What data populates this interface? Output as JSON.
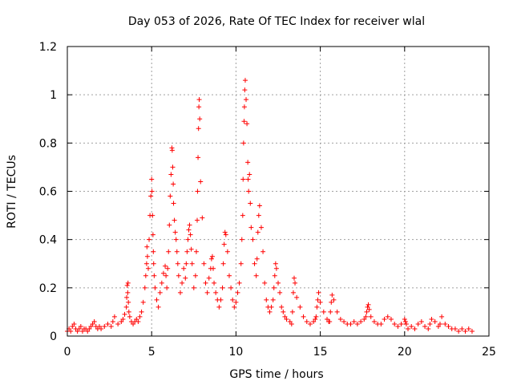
{
  "chart_data": {
    "type": "scatter",
    "title": "Day 053 of 2026, Rate Of TEC Index for receiver wlal",
    "xlabel": "GPS time / hours",
    "ylabel": "ROTI / TECUs",
    "xlim": [
      0,
      25
    ],
    "ylim": [
      0,
      1.2
    ],
    "xticks": [
      0,
      5,
      10,
      15,
      20,
      25
    ],
    "xtick_labels": [
      "0",
      "5",
      "10",
      "15",
      "20",
      "25"
    ],
    "yticks": [
      0,
      0.2,
      0.4,
      0.6,
      0.8,
      1,
      1.2
    ],
    "ytick_labels": [
      "0",
      "0.2",
      "0.4",
      "0.6",
      "0.8",
      "1",
      "1.2"
    ],
    "grid": true,
    "marker": "plus",
    "color": "#ff0000",
    "series": [
      {
        "x": [
          0.0,
          0.1,
          0.2,
          0.3,
          0.4,
          0.5,
          0.6,
          0.7,
          0.8,
          0.9,
          1.0,
          1.1,
          1.2,
          1.3,
          1.4,
          1.5,
          1.6,
          1.7,
          1.8,
          1.9,
          2.0,
          2.2,
          2.4,
          2.6,
          2.7,
          2.8,
          3.0,
          3.2,
          3.3,
          3.4,
          3.5,
          3.52,
          3.55,
          3.58,
          3.6,
          3.62,
          3.65,
          3.7,
          3.8,
          3.9,
          4.0,
          4.1,
          4.2,
          4.3,
          4.4,
          4.5,
          4.6,
          4.65,
          4.7,
          4.72,
          4.75,
          4.8,
          4.85,
          4.9,
          4.95,
          5.0,
          5.02,
          5.05,
          5.08,
          5.1,
          5.12,
          5.15,
          5.2,
          5.3,
          5.4,
          5.5,
          5.6,
          5.7,
          5.8,
          5.85,
          5.9,
          5.95,
          6.0,
          6.05,
          6.1,
          6.15,
          6.2,
          6.22,
          6.25,
          6.28,
          6.3,
          6.35,
          6.4,
          6.45,
          6.5,
          6.55,
          6.6,
          6.7,
          6.8,
          6.9,
          7.0,
          7.05,
          7.1,
          7.15,
          7.2,
          7.25,
          7.3,
          7.35,
          7.4,
          7.5,
          7.6,
          7.65,
          7.7,
          7.72,
          7.75,
          7.78,
          7.8,
          7.82,
          7.85,
          7.9,
          8.0,
          8.1,
          8.2,
          8.3,
          8.4,
          8.5,
          8.55,
          8.6,
          8.65,
          8.7,
          8.8,
          8.9,
          9.0,
          9.1,
          9.2,
          9.25,
          9.3,
          9.35,
          9.4,
          9.5,
          9.6,
          9.7,
          9.8,
          9.9,
          10.0,
          10.1,
          10.2,
          10.3,
          10.35,
          10.4,
          10.42,
          10.45,
          10.48,
          10.5,
          10.52,
          10.55,
          10.6,
          10.65,
          10.7,
          10.72,
          10.75,
          10.8,
          10.85,
          10.9,
          11.0,
          11.1,
          11.2,
          11.25,
          11.3,
          11.35,
          11.4,
          11.5,
          11.6,
          11.7,
          11.8,
          11.9,
          12.0,
          12.1,
          12.2,
          12.25,
          12.3,
          12.35,
          12.4,
          12.5,
          12.6,
          12.7,
          12.8,
          12.9,
          13.0,
          13.2,
          13.3,
          13.35,
          13.4,
          13.45,
          13.5,
          13.6,
          13.8,
          14.0,
          14.2,
          14.4,
          14.6,
          14.7,
          14.75,
          14.8,
          14.85,
          14.9,
          15.0,
          15.2,
          15.4,
          15.5,
          15.55,
          15.6,
          15.65,
          15.7,
          15.8,
          16.0,
          16.2,
          16.4,
          16.6,
          16.8,
          17.0,
          17.2,
          17.4,
          17.6,
          17.7,
          17.75,
          17.8,
          17.85,
          17.9,
          18.0,
          18.2,
          18.4,
          18.6,
          18.8,
          19.0,
          19.2,
          19.4,
          19.6,
          19.8,
          20.0,
          20.05,
          20.1,
          20.2,
          20.4,
          20.6,
          20.8,
          21.0,
          21.2,
          21.4,
          21.5,
          21.6,
          21.8,
          22.0,
          22.1,
          22.2,
          22.4,
          22.6,
          22.8,
          23.0,
          23.2,
          23.4,
          23.6,
          23.8,
          24.0
        ],
        "y": [
          0.02,
          0.03,
          0.02,
          0.04,
          0.05,
          0.03,
          0.02,
          0.03,
          0.04,
          0.02,
          0.03,
          0.03,
          0.02,
          0.03,
          0.04,
          0.05,
          0.06,
          0.04,
          0.03,
          0.04,
          0.03,
          0.04,
          0.05,
          0.04,
          0.06,
          0.08,
          0.05,
          0.06,
          0.07,
          0.09,
          0.12,
          0.16,
          0.21,
          0.18,
          0.22,
          0.14,
          0.1,
          0.08,
          0.06,
          0.05,
          0.06,
          0.07,
          0.06,
          0.08,
          0.1,
          0.14,
          0.2,
          0.25,
          0.3,
          0.37,
          0.33,
          0.28,
          0.4,
          0.5,
          0.58,
          0.65,
          0.6,
          0.5,
          0.42,
          0.35,
          0.3,
          0.25,
          0.2,
          0.15,
          0.12,
          0.18,
          0.22,
          0.26,
          0.29,
          0.25,
          0.2,
          0.28,
          0.35,
          0.46,
          0.58,
          0.67,
          0.78,
          0.77,
          0.7,
          0.63,
          0.55,
          0.48,
          0.43,
          0.4,
          0.35,
          0.3,
          0.25,
          0.18,
          0.22,
          0.28,
          0.24,
          0.3,
          0.35,
          0.4,
          0.44,
          0.46,
          0.42,
          0.36,
          0.3,
          0.2,
          0.25,
          0.35,
          0.48,
          0.6,
          0.74,
          0.86,
          0.95,
          0.98,
          0.9,
          0.64,
          0.49,
          0.3,
          0.22,
          0.18,
          0.24,
          0.28,
          0.32,
          0.33,
          0.28,
          0.22,
          0.18,
          0.15,
          0.12,
          0.15,
          0.2,
          0.3,
          0.38,
          0.43,
          0.42,
          0.35,
          0.25,
          0.2,
          0.15,
          0.12,
          0.14,
          0.18,
          0.22,
          0.3,
          0.4,
          0.5,
          0.65,
          0.8,
          0.89,
          0.95,
          1.02,
          1.06,
          0.98,
          0.88,
          0.72,
          0.65,
          0.6,
          0.67,
          0.55,
          0.45,
          0.4,
          0.3,
          0.25,
          0.32,
          0.43,
          0.5,
          0.54,
          0.45,
          0.35,
          0.22,
          0.15,
          0.12,
          0.1,
          0.12,
          0.15,
          0.2,
          0.25,
          0.3,
          0.28,
          0.22,
          0.18,
          0.12,
          0.1,
          0.08,
          0.07,
          0.06,
          0.05,
          0.1,
          0.18,
          0.24,
          0.22,
          0.16,
          0.12,
          0.08,
          0.06,
          0.05,
          0.06,
          0.07,
          0.08,
          0.12,
          0.15,
          0.18,
          0.14,
          0.1,
          0.07,
          0.06,
          0.06,
          0.1,
          0.14,
          0.17,
          0.15,
          0.1,
          0.07,
          0.06,
          0.05,
          0.05,
          0.06,
          0.05,
          0.06,
          0.07,
          0.08,
          0.1,
          0.12,
          0.13,
          0.11,
          0.08,
          0.06,
          0.05,
          0.05,
          0.07,
          0.08,
          0.07,
          0.05,
          0.04,
          0.05,
          0.07,
          0.06,
          0.05,
          0.03,
          0.04,
          0.03,
          0.05,
          0.06,
          0.04,
          0.03,
          0.05,
          0.07,
          0.06,
          0.04,
          0.05,
          0.08,
          0.05,
          0.04,
          0.03,
          0.03,
          0.02,
          0.03,
          0.02,
          0.03,
          0.02
        ]
      }
    ]
  }
}
